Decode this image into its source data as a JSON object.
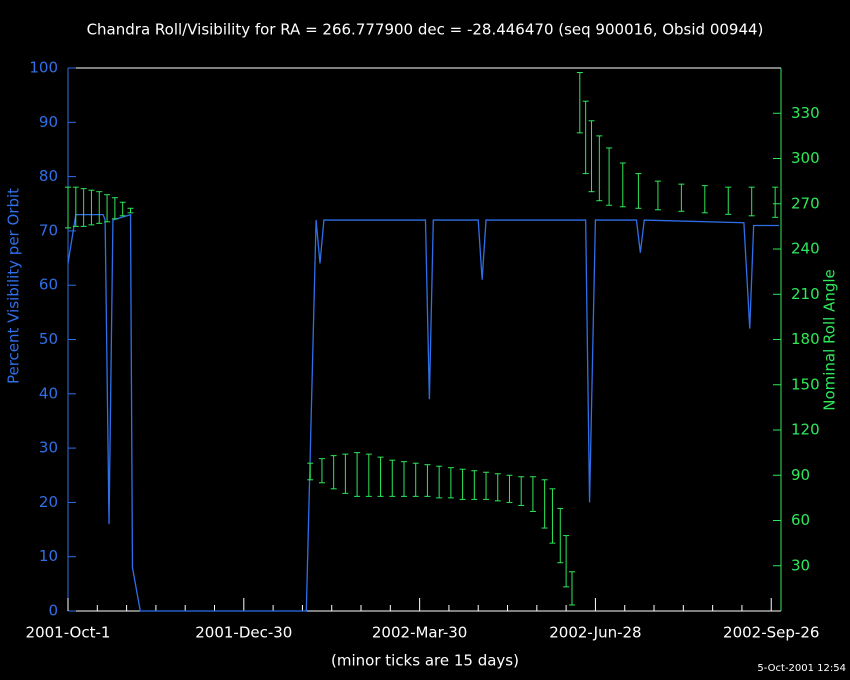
{
  "chart_data": {
    "type": "line",
    "title": "Chandra Roll/Visibility for RA = 266.777900 dec = -28.446470 (seq 900016, Obsid 00944)",
    "xlabel": "(minor ticks are 15 days)",
    "ylabel": "Percent Visibility per Orbit",
    "y2label": "Nominal Roll Angle",
    "timestamp": "5-Oct-2001 12:54",
    "xlim": [
      "2001-10-01",
      "2002-10-01"
    ],
    "xticks": [
      {
        "value": "2001-10-01",
        "label": "2001-Oct-1"
      },
      {
        "value": "2001-12-30",
        "label": "2001-Dec-30"
      },
      {
        "value": "2002-03-30",
        "label": "2002-Mar-30"
      },
      {
        "value": "2002-06-28",
        "label": "2002-Jun-28"
      },
      {
        "value": "2002-09-26",
        "label": "2002-Sep-26"
      }
    ],
    "xminorticks": [
      "2001-10-16",
      "2001-10-31",
      "2001-11-15",
      "2001-11-30",
      "2001-12-15",
      "2002-01-14",
      "2002-01-29",
      "2002-02-13",
      "2002-02-28",
      "2002-03-15",
      "2002-04-14",
      "2002-04-29",
      "2002-05-14",
      "2002-05-29",
      "2002-06-13",
      "2002-07-13",
      "2002-07-28",
      "2002-08-12",
      "2002-08-27",
      "2002-09-11"
    ],
    "ylim": [
      0,
      100
    ],
    "yticks": [
      0,
      10,
      20,
      30,
      40,
      50,
      60,
      70,
      80,
      90,
      100
    ],
    "y2lim": [
      0,
      360
    ],
    "y2ticks": [
      30,
      60,
      90,
      120,
      150,
      180,
      210,
      240,
      270,
      300,
      330
    ],
    "series": [
      {
        "color": "#2f6fe8",
        "x": [
          "2001-10-01",
          "2001-10-05",
          "2001-10-19",
          "2001-10-20",
          "2001-10-22",
          "2001-10-24",
          "2001-11-02",
          "2001-11-03",
          "2001-11-07",
          "2002-01-31",
          "2002-02-05",
          "2002-02-07",
          "2002-02-09",
          "2002-04-02",
          "2002-04-04",
          "2002-04-06",
          "2002-04-29",
          "2002-05-01",
          "2002-05-03",
          "2002-06-23",
          "2002-06-25",
          "2002-06-28",
          "2002-07-19",
          "2002-07-21",
          "2002-07-23",
          "2002-09-12",
          "2002-09-15",
          "2002-09-17",
          "2002-09-30"
        ],
        "values": [
          64,
          73,
          73,
          72,
          16,
          72,
          73,
          8,
          0,
          0,
          72,
          64,
          72,
          72,
          39,
          72,
          72,
          61,
          72,
          72,
          20,
          72,
          72,
          66,
          72,
          71.5,
          52,
          71,
          71
        ]
      },
      {
        "type": "errorbar",
        "axis": "y2",
        "color": "#2ee85a",
        "x": [
          "2001-10-01",
          "2001-10-05",
          "2001-10-09",
          "2001-10-13",
          "2001-10-17",
          "2001-10-21",
          "2001-10-25",
          "2001-10-29",
          "2001-11-02",
          "2002-02-02",
          "2002-02-08",
          "2002-02-14",
          "2002-02-20",
          "2002-02-26",
          "2002-03-04",
          "2002-03-10",
          "2002-03-16",
          "2002-03-22",
          "2002-03-28",
          "2002-04-03",
          "2002-04-09",
          "2002-04-15",
          "2002-04-21",
          "2002-04-27",
          "2002-05-03",
          "2002-05-09",
          "2002-05-15",
          "2002-05-21",
          "2002-05-27",
          "2002-06-02",
          "2002-06-06",
          "2002-06-10",
          "2002-06-13",
          "2002-06-16",
          "2002-06-20",
          "2002-06-23",
          "2002-06-26",
          "2002-06-30",
          "2002-07-05",
          "2002-07-12",
          "2002-07-20",
          "2002-07-30",
          "2002-08-11",
          "2002-08-23",
          "2002-09-04",
          "2002-09-16",
          "2002-09-28"
        ],
        "low": [
          254,
          255,
          255,
          256,
          257,
          258,
          260,
          262,
          264,
          87,
          85,
          81,
          78,
          76,
          76,
          76,
          76,
          76,
          76,
          76,
          75,
          75,
          74,
          74,
          74,
          73,
          72,
          70,
          66,
          55,
          45,
          32,
          16,
          4,
          317,
          290,
          278,
          272,
          269,
          268,
          267,
          266,
          265,
          264,
          263,
          262,
          261
        ],
        "high": [
          281,
          281,
          280,
          279,
          278,
          276,
          274,
          271,
          267,
          98,
          101,
          103,
          104,
          105,
          104,
          102,
          100,
          99,
          98,
          97,
          96,
          95,
          94,
          93,
          92,
          91,
          90,
          89,
          89,
          87,
          81,
          68,
          50,
          26,
          357,
          338,
          325,
          315,
          307,
          297,
          290,
          285,
          283,
          282,
          281,
          281,
          281
        ]
      }
    ]
  }
}
